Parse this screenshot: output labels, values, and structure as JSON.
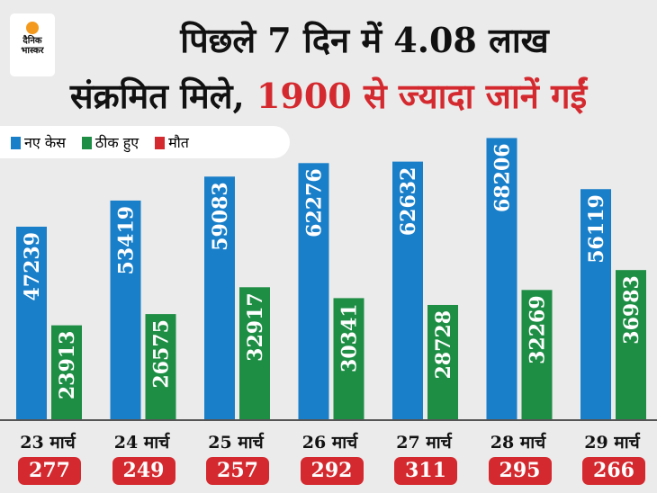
{
  "logo": {
    "line1": "दैनिक",
    "line2": "भास्कर"
  },
  "title": {
    "line1": "पिछले 7 दिन में 4.08 लाख",
    "line2_black": "संक्रमित मिले,",
    "line2_red": "1900 से ज्यादा जानें गईं"
  },
  "colors": {
    "new": "#1a7fc9",
    "recovered": "#1e8e45",
    "deaths": "#d42a2f"
  },
  "chart_data": {
    "type": "bar",
    "categories": [
      "23 मार्च",
      "24 मार्च",
      "25 मार्च",
      "26 मार्च",
      "27 मार्च",
      "28 मार्च",
      "29 मार्च"
    ],
    "series": [
      {
        "name": "नए केस",
        "values": [
          47239,
          53419,
          59083,
          62276,
          62632,
          68206,
          56119
        ]
      },
      {
        "name": "ठीक हुए",
        "values": [
          23913,
          26575,
          32917,
          30341,
          28728,
          32269,
          36983
        ]
      },
      {
        "name": "मौत",
        "values": [
          277,
          249,
          257,
          292,
          311,
          295,
          266
        ]
      }
    ],
    "legend": "top-left"
  }
}
